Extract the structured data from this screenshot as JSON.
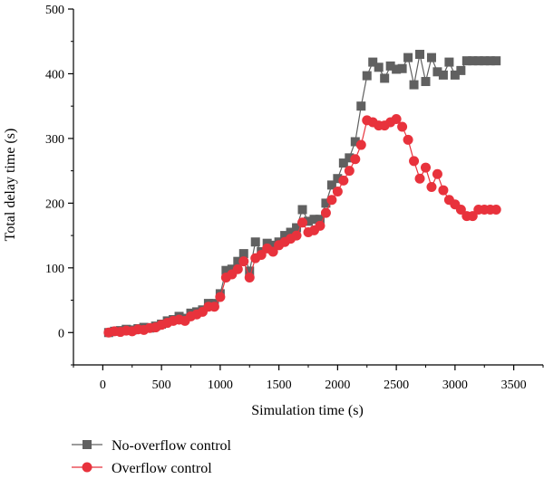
{
  "chart_data": {
    "type": "line",
    "xlabel": "Simulation time (s)",
    "ylabel": "Total delay time (s)",
    "xlim": [
      -250,
      3750
    ],
    "ylim": [
      -50,
      500
    ],
    "x_ticks": [
      0,
      500,
      1000,
      1500,
      2000,
      2500,
      3000,
      3500
    ],
    "y_ticks": [
      0,
      100,
      200,
      300,
      400,
      500
    ],
    "legend_position": "bottom-left",
    "grid": false,
    "series": [
      {
        "name": "No-overflow control",
        "color": "#606060",
        "marker": "square",
        "x": [
          50,
          100,
          150,
          200,
          250,
          300,
          350,
          400,
          450,
          500,
          550,
          600,
          650,
          700,
          750,
          800,
          850,
          900,
          950,
          1000,
          1050,
          1100,
          1150,
          1200,
          1250,
          1300,
          1350,
          1400,
          1450,
          1500,
          1550,
          1600,
          1650,
          1700,
          1750,
          1800,
          1850,
          1900,
          1950,
          2000,
          2050,
          2100,
          2150,
          2200,
          2250,
          2300,
          2350,
          2400,
          2450,
          2500,
          2550,
          2600,
          2650,
          2700,
          2750,
          2800,
          2850,
          2900,
          2950,
          3000,
          3050,
          3100,
          3150,
          3200,
          3250,
          3300,
          3350
        ],
        "y": [
          0,
          2,
          3,
          5,
          4,
          6,
          8,
          7,
          10,
          13,
          18,
          20,
          25,
          22,
          30,
          32,
          35,
          45,
          45,
          60,
          96,
          98,
          110,
          122,
          95,
          140,
          125,
          138,
          135,
          140,
          150,
          155,
          162,
          190,
          172,
          175,
          175,
          200,
          228,
          238,
          262,
          270,
          295,
          350,
          397,
          418,
          410,
          393,
          412,
          407,
          408,
          425,
          383,
          430,
          388,
          425,
          403,
          398,
          418,
          398,
          405,
          420,
          420,
          420,
          420,
          420,
          420
        ]
      },
      {
        "name": "Overflow control",
        "color": "#e8323c",
        "marker": "circle",
        "x": [
          50,
          100,
          150,
          200,
          250,
          300,
          350,
          400,
          450,
          500,
          550,
          600,
          650,
          700,
          750,
          800,
          850,
          900,
          950,
          1000,
          1050,
          1100,
          1150,
          1200,
          1250,
          1300,
          1350,
          1400,
          1450,
          1500,
          1550,
          1600,
          1650,
          1700,
          1750,
          1800,
          1850,
          1900,
          1950,
          2000,
          2050,
          2100,
          2150,
          2200,
          2250,
          2300,
          2350,
          2400,
          2450,
          2500,
          2550,
          2600,
          2650,
          2700,
          2750,
          2800,
          2850,
          2900,
          2950,
          3000,
          3050,
          3100,
          3150,
          3200,
          3250,
          3300,
          3350
        ],
        "y": [
          0,
          2,
          1,
          3,
          2,
          5,
          4,
          7,
          8,
          12,
          15,
          18,
          20,
          18,
          25,
          28,
          32,
          40,
          40,
          55,
          85,
          90,
          98,
          110,
          85,
          115,
          120,
          130,
          125,
          135,
          140,
          145,
          150,
          170,
          155,
          158,
          165,
          185,
          205,
          218,
          235,
          250,
          268,
          290,
          328,
          325,
          320,
          320,
          325,
          330,
          318,
          298,
          265,
          238,
          255,
          225,
          245,
          220,
          205,
          198,
          190,
          180,
          180,
          190,
          190,
          190,
          190
        ]
      }
    ]
  }
}
